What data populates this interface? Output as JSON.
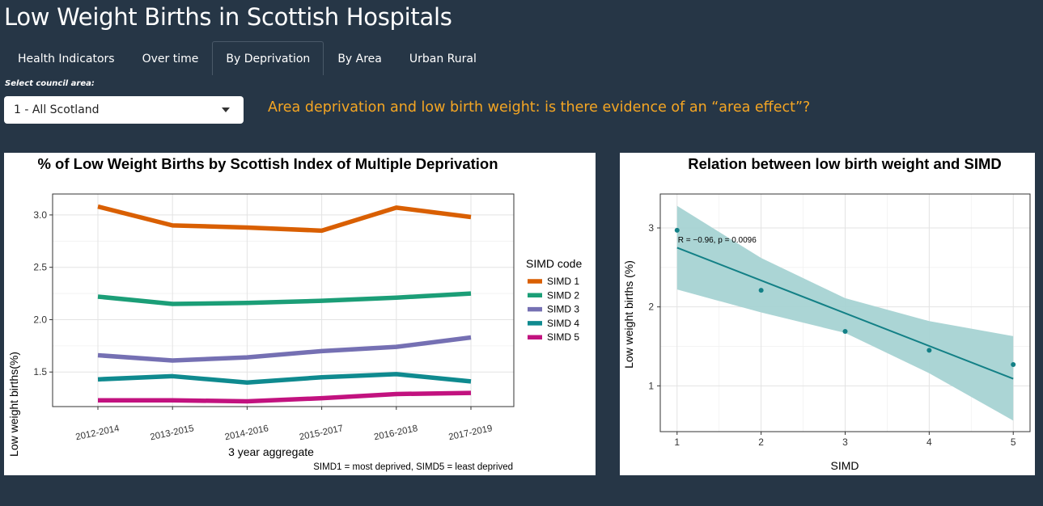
{
  "app": {
    "title": "Low Weight Births in Scottish Hospitals"
  },
  "tabs": [
    {
      "label": "Health Indicators",
      "active": false
    },
    {
      "label": "Over time",
      "active": false
    },
    {
      "label": "By Deprivation",
      "active": true
    },
    {
      "label": "By Area",
      "active": false
    },
    {
      "label": "Urban Rural",
      "active": false
    }
  ],
  "filter": {
    "label": "Select council area:",
    "value": "1 - All Scotland"
  },
  "headline": "Area deprivation and low birth weight: is there evidence of an “area effect”?",
  "colors": {
    "background": "#263646",
    "accent": "#f5a623"
  },
  "chart_data": [
    {
      "type": "line",
      "title": "% of Low Weight Births by Scottish Index of Multiple Deprivation",
      "xlabel": "3 year aggregate",
      "ylabel": "Low weight births(%)",
      "caption": "SIMD1 = most deprived, SIMD5 = least deprived",
      "legend_title": "SIMD code",
      "legend_position": "right",
      "grid": true,
      "categories": [
        "2012-2014",
        "2013-2015",
        "2014-2016",
        "2015-2017",
        "2016-2018",
        "2017-2019"
      ],
      "yticks": [
        "1.5",
        "2.0",
        "2.5",
        "3.0"
      ],
      "ylim": [
        1.17,
        3.2
      ],
      "series": [
        {
          "name": "SIMD 1",
          "color": "#d95f02",
          "values": [
            3.08,
            2.9,
            2.88,
            2.85,
            3.07,
            2.98
          ]
        },
        {
          "name": "SIMD 2",
          "color": "#1b9e77",
          "values": [
            2.22,
            2.15,
            2.16,
            2.18,
            2.21,
            2.25
          ]
        },
        {
          "name": "SIMD 3",
          "color": "#7570b3",
          "values": [
            1.66,
            1.61,
            1.64,
            1.7,
            1.74,
            1.83
          ]
        },
        {
          "name": "SIMD 4",
          "color": "#0f8a8f",
          "values": [
            1.43,
            1.46,
            1.4,
            1.45,
            1.48,
            1.41
          ]
        },
        {
          "name": "SIMD 5",
          "color": "#c2127f",
          "values": [
            1.23,
            1.23,
            1.22,
            1.25,
            1.29,
            1.3
          ]
        }
      ]
    },
    {
      "type": "scatter",
      "title": "Relation between low birth weight and SIMD",
      "xlabel": "SIMD",
      "ylabel": "Low weight births (%)",
      "annotation": "R = −0.96, p = 0.0096",
      "grid": true,
      "color": "#138086",
      "band_color": "#a7d3d3",
      "xticks": [
        "1",
        "2",
        "3",
        "4",
        "5"
      ],
      "yticks": [
        "1",
        "2",
        "3"
      ],
      "xlim": [
        0.8,
        5.2
      ],
      "ylim": [
        0.42,
        3.43
      ],
      "points": [
        {
          "x": 1,
          "y": 2.97
        },
        {
          "x": 2,
          "y": 2.21
        },
        {
          "x": 3,
          "y": 1.69
        },
        {
          "x": 4,
          "y": 1.45
        },
        {
          "x": 5,
          "y": 1.27
        }
      ],
      "fit": {
        "x": [
          1,
          5
        ],
        "y": [
          2.75,
          1.09
        ]
      },
      "ci_upper": [
        3.28,
        2.62,
        2.11,
        1.82,
        1.63
      ],
      "ci_lower": [
        2.22,
        1.93,
        1.67,
        1.16,
        0.56
      ]
    }
  ]
}
